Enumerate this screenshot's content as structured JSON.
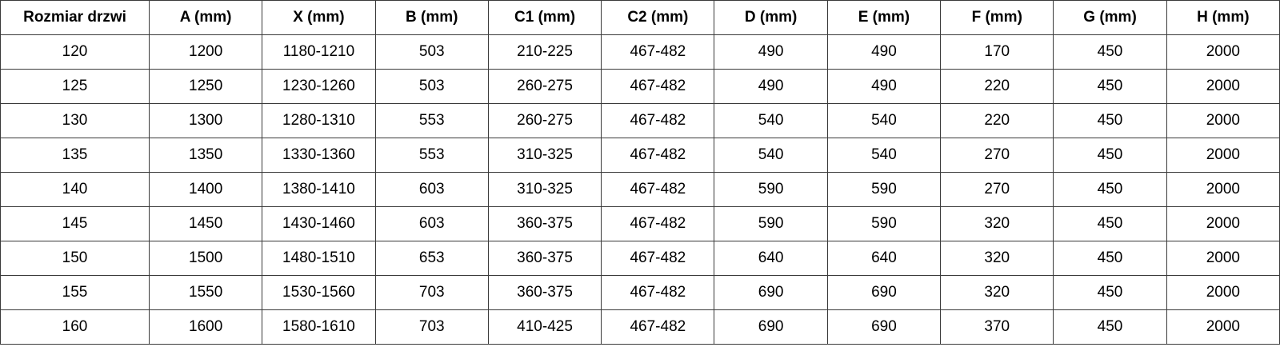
{
  "table": {
    "headers": [
      "Rozmiar drzwi",
      "A (mm)",
      "X (mm)",
      "B (mm)",
      "C1 (mm)",
      "C2 (mm)",
      "D (mm)",
      "E (mm)",
      "F (mm)",
      "G (mm)",
      "H (mm)"
    ],
    "rows": [
      [
        "120",
        "1200",
        "1180-1210",
        "503",
        "210-225",
        "467-482",
        "490",
        "490",
        "170",
        "450",
        "2000"
      ],
      [
        "125",
        "1250",
        "1230-1260",
        "503",
        "260-275",
        "467-482",
        "490",
        "490",
        "220",
        "450",
        "2000"
      ],
      [
        "130",
        "1300",
        "1280-1310",
        "553",
        "260-275",
        "467-482",
        "540",
        "540",
        "220",
        "450",
        "2000"
      ],
      [
        "135",
        "1350",
        "1330-1360",
        "553",
        "310-325",
        "467-482",
        "540",
        "540",
        "270",
        "450",
        "2000"
      ],
      [
        "140",
        "1400",
        "1380-1410",
        "603",
        "310-325",
        "467-482",
        "590",
        "590",
        "270",
        "450",
        "2000"
      ],
      [
        "145",
        "1450",
        "1430-1460",
        "603",
        "360-375",
        "467-482",
        "590",
        "590",
        "320",
        "450",
        "2000"
      ],
      [
        "150",
        "1500",
        "1480-1510",
        "653",
        "360-375",
        "467-482",
        "640",
        "640",
        "320",
        "450",
        "2000"
      ],
      [
        "155",
        "1550",
        "1530-1560",
        "703",
        "360-375",
        "467-482",
        "690",
        "690",
        "320",
        "450",
        "2000"
      ],
      [
        "160",
        "1600",
        "1580-1610",
        "703",
        "410-425",
        "467-482",
        "690",
        "690",
        "370",
        "450",
        "2000"
      ]
    ]
  }
}
